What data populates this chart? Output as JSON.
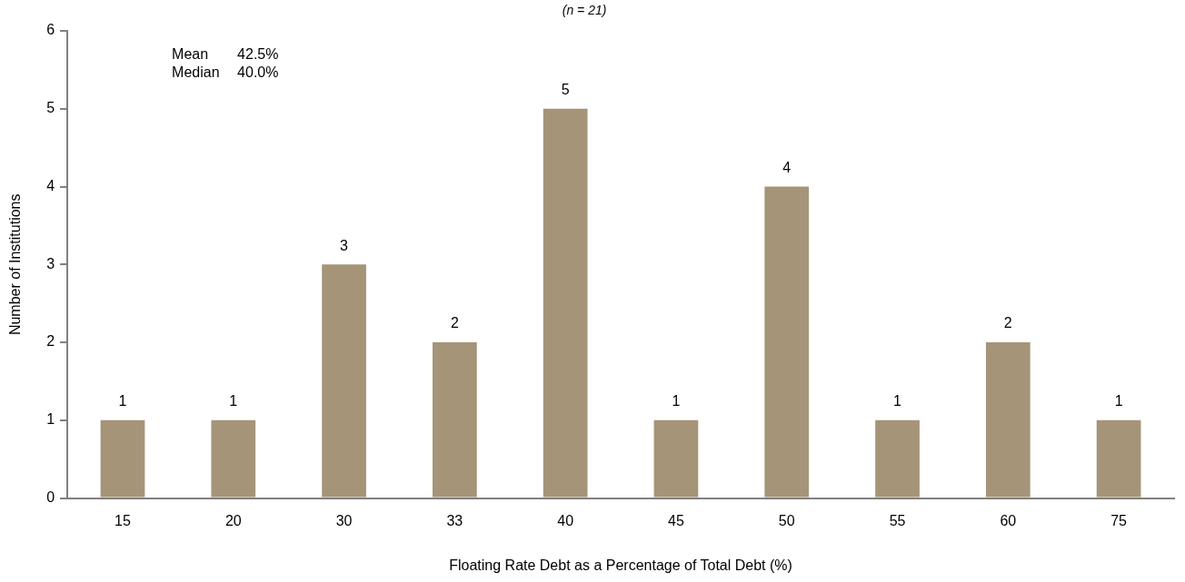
{
  "chart_data": {
    "type": "bar",
    "subtitle": "(n = 21)",
    "xlabel": "Floating Rate Debt as a Percentage of Total Debt (%)",
    "ylabel": "Number of Institutions",
    "categories": [
      "15",
      "20",
      "30",
      "33",
      "40",
      "45",
      "50",
      "55",
      "60",
      "75"
    ],
    "values": [
      1,
      1,
      3,
      2,
      5,
      1,
      4,
      1,
      2,
      1
    ],
    "color": "#a59478",
    "ylim": [
      0,
      6
    ],
    "yticks": [
      0,
      1,
      2,
      3,
      4,
      5,
      6
    ],
    "grid": false,
    "legend": false,
    "data_labels": true,
    "annotations": [
      "Mean 42.5%",
      "Median 40.0%"
    ]
  }
}
